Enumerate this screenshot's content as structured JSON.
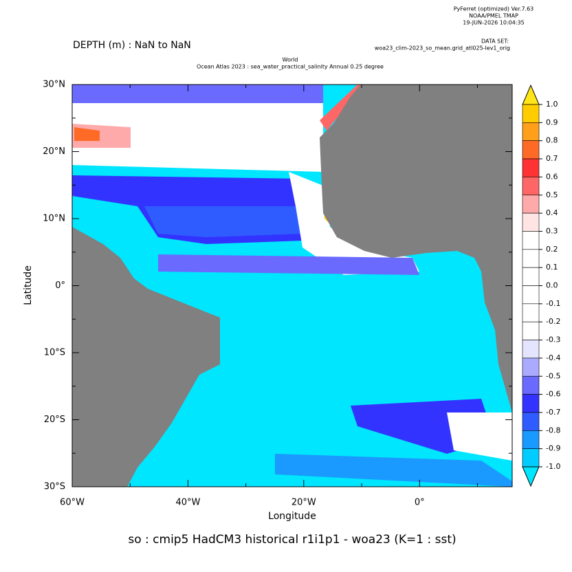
{
  "header": {
    "software": "PyFerret (optimized) Ver.7.63",
    "org": "NOAA/PMEL TMAP",
    "date": "19-JUN-2026 10:04:35",
    "dataset_label": "DATA SET:",
    "dataset": "woa23_clim-2023_so_mean.grid_atl025-lev1_orig"
  },
  "depth": "DEPTH (m) : NaN to NaN",
  "title_line1": "World",
  "title_line2": "Ocean Atlas 2023 : sea_water_practical_salinity Annual  0.25 degree",
  "footer": "so : cmip5 HadCM3 historical r1i1p1 - woa23  (K=1 : sst)",
  "map": {
    "xlabel": "Longitude",
    "ylabel": "Latitude",
    "xlim": [
      -60,
      16
    ],
    "ylim": [
      -30,
      30
    ],
    "xticks": [
      {
        "value": -60,
        "label": "60°W"
      },
      {
        "value": -40,
        "label": "40°W"
      },
      {
        "value": -20,
        "label": "20°W"
      },
      {
        "value": 0,
        "label": "0°"
      }
    ],
    "yticks": [
      {
        "value": 30,
        "label": "30°N"
      },
      {
        "value": 20,
        "label": "20°N"
      },
      {
        "value": 10,
        "label": "10°N"
      },
      {
        "value": 0,
        "label": "0°"
      },
      {
        "value": -10,
        "label": "10°S"
      },
      {
        "value": -20,
        "label": "20°S"
      },
      {
        "value": -30,
        "label": "30°S"
      }
    ]
  },
  "colorbar": {
    "levels": [
      {
        "value": 1.0,
        "label": "1.0"
      },
      {
        "value": 0.9,
        "label": "0.9"
      },
      {
        "value": 0.8,
        "label": "0.8"
      },
      {
        "value": 0.7,
        "label": "0.7"
      },
      {
        "value": 0.6,
        "label": "0.6"
      },
      {
        "value": 0.5,
        "label": "0.5"
      },
      {
        "value": 0.4,
        "label": "0.4"
      },
      {
        "value": 0.3,
        "label": "0.3"
      },
      {
        "value": 0.2,
        "label": "0.2"
      },
      {
        "value": 0.1,
        "label": "0.1"
      },
      {
        "value": 0.0,
        "label": "0.0"
      },
      {
        "value": -0.1,
        "label": "-0.1"
      },
      {
        "value": -0.2,
        "label": "-0.2"
      },
      {
        "value": -0.3,
        "label": "-0.3"
      },
      {
        "value": -0.4,
        "label": "-0.4"
      },
      {
        "value": -0.5,
        "label": "-0.5"
      },
      {
        "value": -0.6,
        "label": "-0.6"
      },
      {
        "value": -0.7,
        "label": "-0.7"
      },
      {
        "value": -0.8,
        "label": "-0.8"
      },
      {
        "value": -0.9,
        "label": "-0.9"
      },
      {
        "value": -1.0,
        "label": "-1.0"
      }
    ],
    "colors": [
      "#ffe619",
      "#ffcc00",
      "#ff9f1a",
      "#ff6a26",
      "#ff3333",
      "#ff6666",
      "#ffaaaa",
      "#ffe4e4",
      "#ffffff",
      "#ffffff",
      "#ffffff",
      "#ffffff",
      "#ffffff",
      "#ffffff",
      "#e4e4ff",
      "#aaaaff",
      "#6a6aff",
      "#3333ff",
      "#2f5cff",
      "#1a99ff",
      "#00ccff",
      "#00e6ff"
    ]
  }
}
